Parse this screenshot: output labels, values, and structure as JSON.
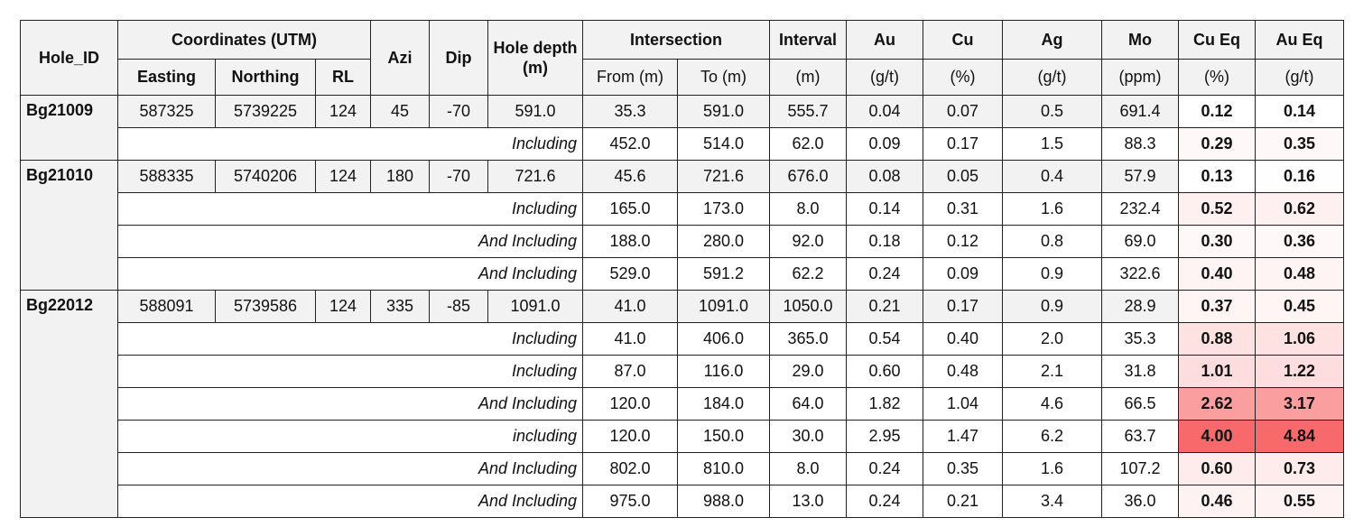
{
  "table": {
    "headers": {
      "hole_id": "Hole_ID",
      "coordinates": "Coordinates (UTM)",
      "easting": "Easting",
      "northing": "Northing",
      "rl": "RL",
      "azi": "Azi",
      "dip": "Dip",
      "hole_depth": "Hole depth (m)",
      "intersection": "Intersection",
      "from": "From (m)",
      "to": "To (m)",
      "columns": [
        {
          "name": "Interval",
          "unit": "(m)"
        },
        {
          "name": "Au",
          "unit": "(g/t)"
        },
        {
          "name": "Cu",
          "unit": "(%)"
        },
        {
          "name": "Ag",
          "unit": "(g/t)"
        },
        {
          "name": "Mo",
          "unit": "(ppm)"
        },
        {
          "name": "Cu Eq",
          "unit": "(%)"
        },
        {
          "name": "Au Eq",
          "unit": "(g/t)"
        }
      ]
    },
    "holes": [
      {
        "hole_id": "Bg21009",
        "main": [
          "587325",
          "5739225",
          "124",
          "45",
          "-70",
          "591.0",
          "35.3",
          "591.0",
          "555.7",
          "0.04",
          "0.07",
          "0.5",
          "691.4",
          "0.12",
          "0.14"
        ],
        "subs": [
          {
            "label": "Including",
            "cells": [
              "452.0",
              "514.0",
              "62.0",
              "0.09",
              "0.17",
              "1.5",
              "88.3",
              "0.29",
              "0.35"
            ]
          }
        ]
      },
      {
        "hole_id": "Bg21010",
        "main": [
          "588335",
          "5740206",
          "124",
          "180",
          "-70",
          "721.6",
          "45.6",
          "721.6",
          "676.0",
          "0.08",
          "0.05",
          "0.4",
          "57.9",
          "0.13",
          "0.16"
        ],
        "subs": [
          {
            "label": "Including",
            "cells": [
              "165.0",
              "173.0",
              "8.0",
              "0.14",
              "0.31",
              "1.6",
              "232.4",
              "0.52",
              "0.62"
            ]
          },
          {
            "label": "And Including",
            "cells": [
              "188.0",
              "280.0",
              "92.0",
              "0.18",
              "0.12",
              "0.8",
              "69.0",
              "0.30",
              "0.36"
            ]
          },
          {
            "label": "And Including",
            "cells": [
              "529.0",
              "591.2",
              "62.2",
              "0.24",
              "0.09",
              "0.9",
              "322.6",
              "0.40",
              "0.48"
            ]
          }
        ]
      },
      {
        "hole_id": "Bg22012",
        "main": [
          "588091",
          "5739586",
          "124",
          "335",
          "-85",
          "1091.0",
          "41.0",
          "1091.0",
          "1050.0",
          "0.21",
          "0.17",
          "0.9",
          "28.9",
          "0.37",
          "0.45"
        ],
        "subs": [
          {
            "label": "Including",
            "cells": [
              "41.0",
              "406.0",
              "365.0",
              "0.54",
              "0.40",
              "2.0",
              "35.3",
              "0.88",
              "1.06"
            ]
          },
          {
            "label": "Including",
            "cells": [
              "87.0",
              "116.0",
              "29.0",
              "0.60",
              "0.48",
              "2.1",
              "31.8",
              "1.01",
              "1.22"
            ]
          },
          {
            "label": "And Including",
            "cells": [
              "120.0",
              "184.0",
              "64.0",
              "1.82",
              "1.04",
              "4.6",
              "66.5",
              "2.62",
              "3.17"
            ]
          },
          {
            "label": "including",
            "cells": [
              "120.0",
              "150.0",
              "30.0",
              "2.95",
              "1.47",
              "6.2",
              "63.7",
              "4.00",
              "4.84"
            ]
          },
          {
            "label": "And Including",
            "cells": [
              "802.0",
              "810.0",
              "8.0",
              "0.24",
              "0.35",
              "1.6",
              "107.2",
              "0.60",
              "0.73"
            ]
          },
          {
            "label": "And Including",
            "cells": [
              "975.0",
              "988.0",
              "13.0",
              "0.24",
              "0.21",
              "3.4",
              "36.0",
              "0.46",
              "0.55"
            ]
          }
        ]
      }
    ]
  }
}
